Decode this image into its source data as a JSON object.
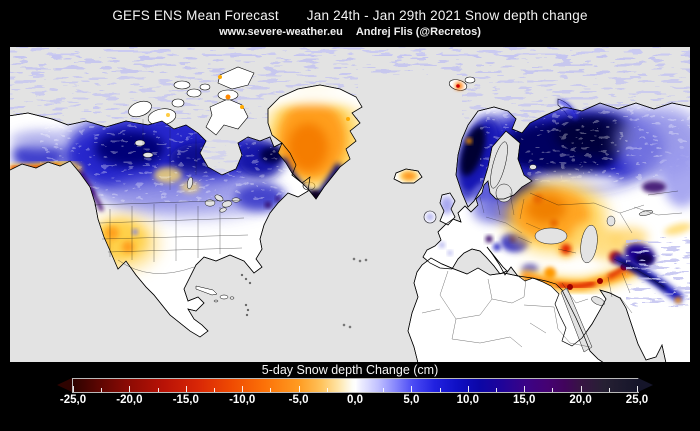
{
  "header": {
    "title": "GEFS ENS Mean Forecast",
    "date_range_title": "Jan 24th - Jan 29th 2021 Snow depth change",
    "website": "www.severe-weather.eu",
    "author": "Andrej Flis (@Recretos)"
  },
  "legend": {
    "title": "5-day Snow depth Change (cm)",
    "ticks": [
      "-25,0",
      "-20,0",
      "-15,0",
      "-10,0",
      "-5,0",
      "0,0",
      "5,0",
      "10,0",
      "15,0",
      "20,0",
      "25,0"
    ]
  },
  "chart_data": {
    "type": "heatmap",
    "title": "GEFS ENS Mean Forecast",
    "period": "Jan 24th - Jan 29th 2021",
    "variable": "Snow depth change",
    "colorbar_label": "5-day Snow depth Change (cm)",
    "unit": "cm",
    "range": [
      -25,
      25
    ],
    "tick_step": 5,
    "minor_tick_step": 2.5,
    "colorbar_stops": [
      {
        "v": -25,
        "c": "#2e0300"
      },
      {
        "v": -22.5,
        "c": "#600602"
      },
      {
        "v": -20,
        "c": "#8e0b04"
      },
      {
        "v": -17,
        "c": "#b81206"
      },
      {
        "v": -14,
        "c": "#d82606"
      },
      {
        "v": -11,
        "c": "#ef4a02"
      },
      {
        "v": -8,
        "c": "#fc7208"
      },
      {
        "v": -5,
        "c": "#ff9c22"
      },
      {
        "v": -3,
        "c": "#ffc35c"
      },
      {
        "v": -1.5,
        "c": "#ffe5a8"
      },
      {
        "v": -0.3,
        "c": "#fdfdf6"
      },
      {
        "v": 0,
        "c": "#ffffff"
      },
      {
        "v": 0.5,
        "c": "#ececff"
      },
      {
        "v": 2,
        "c": "#c0c0ff"
      },
      {
        "v": 3.5,
        "c": "#8888fc"
      },
      {
        "v": 5,
        "c": "#4d4df5"
      },
      {
        "v": 7,
        "c": "#2121e0"
      },
      {
        "v": 9,
        "c": "#0f0fc4"
      },
      {
        "v": 11,
        "c": "#0c06a6"
      },
      {
        "v": 13,
        "c": "#200499"
      },
      {
        "v": 15,
        "c": "#3a0387"
      },
      {
        "v": 17,
        "c": "#450272"
      },
      {
        "v": 18.5,
        "c": "#41045c"
      },
      {
        "v": 20,
        "c": "#371543"
      },
      {
        "v": 22,
        "c": "#262033"
      },
      {
        "v": 25,
        "c": "#15152a"
      }
    ],
    "visible_patterns": [
      {
        "region": "Canada / Hudson Bay area",
        "signal": "snow increase ~3-10 cm (blue) with purple pockets >15 cm"
      },
      {
        "region": "Alaska southern coast",
        "signal": "snow decrease ~-10 to -20 cm (orange/red coastal strip)"
      },
      {
        "region": "US Rockies / Great Basin",
        "signal": "snow decrease ~-3 to -8 cm (yellow/orange)"
      },
      {
        "region": "Northeastern US / Quebec",
        "signal": "snow increase ~3-8 cm, small purple spots"
      },
      {
        "region": "Greenland interior",
        "signal": "snow decrease ~-5 to -12 cm (orange); southern rim increase >10 cm (navy/purple)"
      },
      {
        "region": "Iceland",
        "signal": "small decrease (orange core)"
      },
      {
        "region": "Scandinavia & Finland",
        "signal": "strong increase 5-20 cm (dark blue to near-black)"
      },
      {
        "region": "Eastern Europe / NW Russia",
        "signal": "strong increase 5-20 cm (dark navy blob)"
      },
      {
        "region": "SW Russia / Kazakhstan",
        "signal": "decrease -5 to -12 cm (large orange area)"
      },
      {
        "region": "Turkey / Caucasus / Iran belt",
        "signal": "decrease -10 to -20 cm (red/orange band)"
      },
      {
        "region": "Himalayas / Karakoram",
        "signal": "increase 5-15 cm (navy arc); red decrease on western flank"
      },
      {
        "region": "Tibet / western China",
        "signal": "light increase 1-4 cm (speckled lavender)"
      },
      {
        "region": "Arctic sea ice / Siberia",
        "signal": "light increase 1-3 cm (speckled lavender)"
      },
      {
        "region": "Snow-free land (S US, Mexico, N Africa, Arabia, India)",
        "signal": "no change (white)"
      }
    ]
  }
}
